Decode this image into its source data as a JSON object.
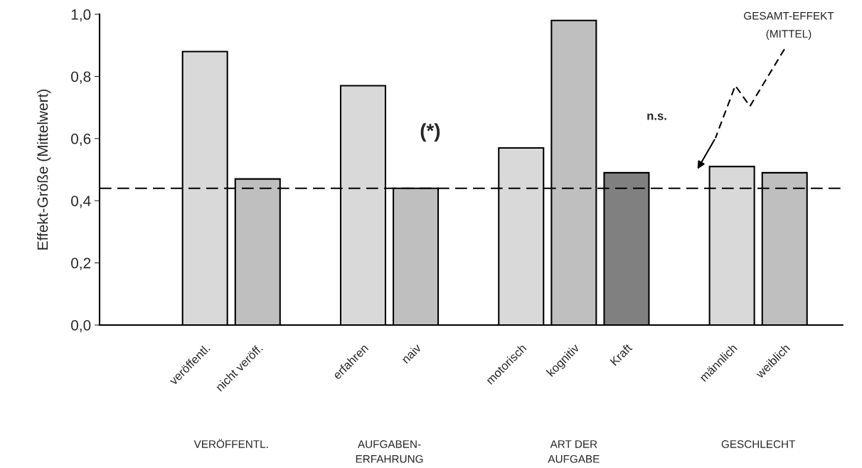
{
  "chart_data": {
    "type": "bar",
    "ylabel": "Effekt-Größe (Mittelwert)",
    "categories": [
      "veröffentl.",
      "nicht veröff.",
      null,
      "erfahren",
      "naiv",
      null,
      "motorisch",
      "kognitiv",
      "Kraft",
      null,
      "männlich",
      "weiblich"
    ],
    "values": [
      0.88,
      0.47,
      null,
      0.77,
      0.44,
      null,
      0.57,
      0.98,
      0.49,
      null,
      0.51,
      0.49
    ],
    "colors": [
      "#d9d9d9",
      "#bfbfbf",
      null,
      "#d9d9d9",
      "#bfbfbf",
      null,
      "#d9d9d9",
      "#bfbfbf",
      "#808080",
      null,
      "#d9d9d9",
      "#bfbfbf"
    ],
    "ylim": [
      0,
      1.0
    ],
    "yticks": [
      {
        "value": 0,
        "label": "0,0"
      },
      {
        "value": 0.2,
        "label": "0,2"
      },
      {
        "value": 0.4,
        "label": "0,4"
      },
      {
        "value": 0.6,
        "label": "0,6"
      },
      {
        "value": 0.8,
        "label": "0,8"
      },
      {
        "value": 1.0,
        "label": "1,0"
      }
    ],
    "ref_lines": [
      {
        "axis": "y",
        "value": 0.44,
        "label": "GESAMT-EFFEKT\n(MITTEL)",
        "color": "#000000",
        "line_style": "dashed"
      }
    ],
    "annotations": [
      "(*)",
      "n.s.",
      "VERÖFFENTL.",
      "AUFGABEN-\nERFAHRUNG",
      "ART DER\nAUFGABE",
      "GESCHLECHT"
    ],
    "grid": false
  }
}
